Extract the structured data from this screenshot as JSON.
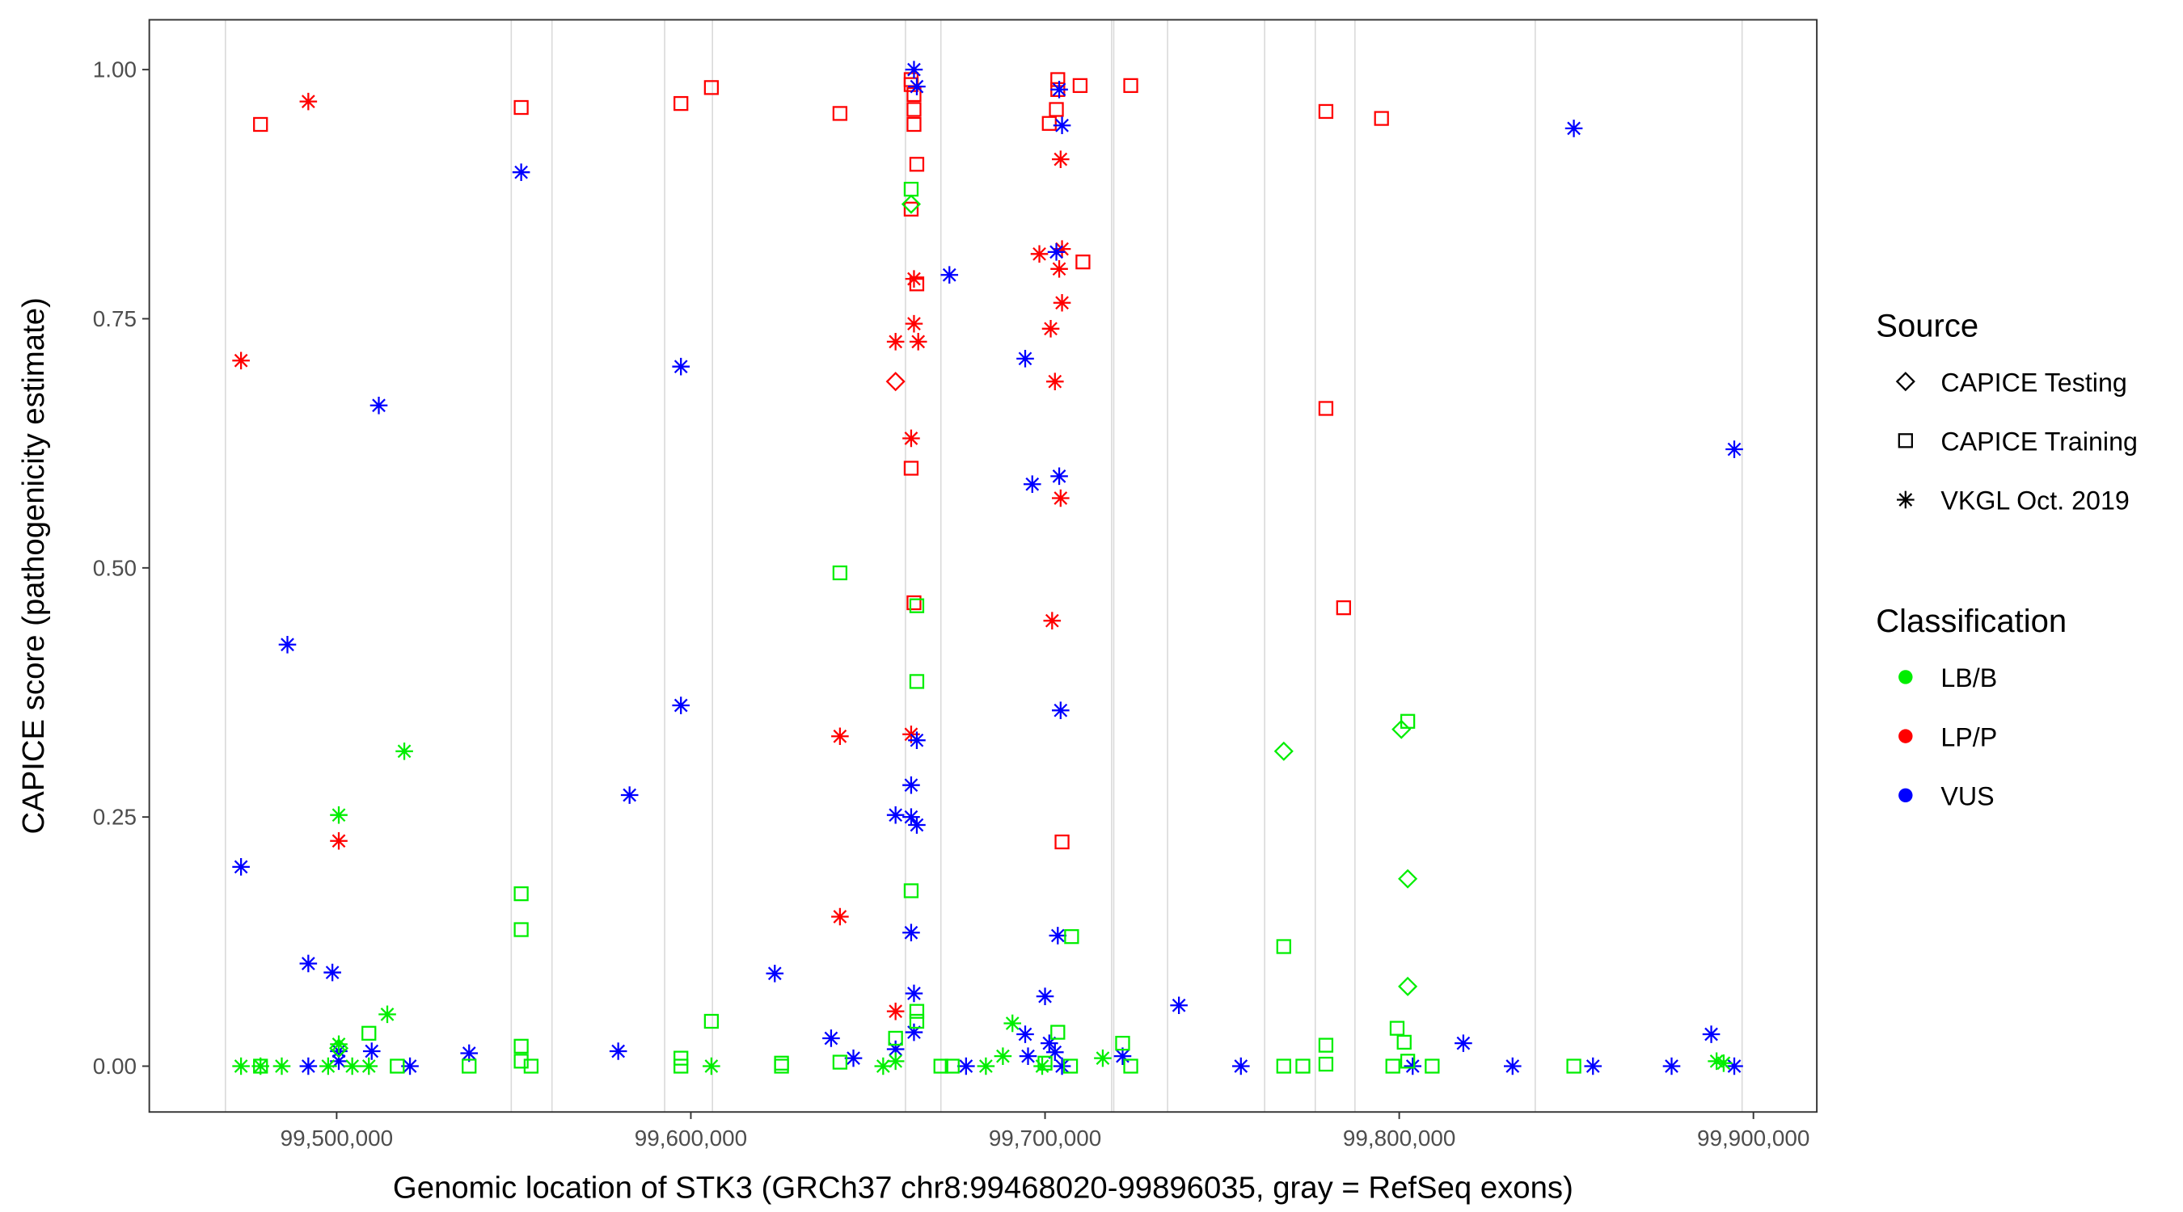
{
  "chart_data": {
    "type": "scatter",
    "xlabel": "Genomic location of STK3 (GRCh37 chr8:99468020-99896035, gray = RefSeq exons)",
    "ylabel": "CAPICE score (pathogenicity estimate)",
    "xlim": [
      99447100,
      99917900
    ],
    "ylim": [
      -0.046,
      1.05
    ],
    "x_ticks": [
      99500000,
      99600000,
      99700000,
      99800000,
      99900000
    ],
    "x_tick_labels": [
      "99,500,000",
      "99,600,000",
      "99,700,000",
      "99,800,000",
      "99,900,000"
    ],
    "y_ticks": [
      0,
      0.25,
      0.5,
      0.75,
      1.0
    ],
    "y_tick_labels": [
      "0.00",
      "0.25",
      "0.50",
      "0.75",
      "1.00"
    ],
    "grid": false,
    "exon_positions": [
      99468600,
      99549300,
      99560800,
      99592600,
      99606100,
      99660600,
      99670600,
      99718800,
      99719400,
      99734600,
      99762000,
      99776300,
      99787500,
      99838400,
      99896800
    ],
    "exon_color": "#d9d9d9",
    "legend": {
      "placement": "right",
      "source_title": "Source",
      "sources": [
        {
          "label": "CAPICE Testing",
          "shape": "diamond-open"
        },
        {
          "label": "CAPICE Training",
          "shape": "square-open"
        },
        {
          "label": "VKGL Oct. 2019",
          "shape": "asterisk"
        }
      ],
      "classification_title": "Classification",
      "classes": [
        {
          "label": "LB/B",
          "color": "#00ee00"
        },
        {
          "label": "LP/P",
          "color": "#ff0000"
        },
        {
          "label": "VUS",
          "color": "#0000ff"
        }
      ]
    },
    "series": [
      {
        "source": "CAPICE Training",
        "classification": "LP/P",
        "points": [
          [
            99478500,
            0.945
          ],
          [
            99552100,
            0.962
          ],
          [
            99597200,
            0.966
          ],
          [
            99605800,
            0.982
          ],
          [
            99642100,
            0.956
          ],
          [
            99662200,
            0.99
          ],
          [
            99662200,
            0.985
          ],
          [
            99663000,
            0.975
          ],
          [
            99663000,
            0.96
          ],
          [
            99663000,
            0.945
          ],
          [
            99663800,
            0.905
          ],
          [
            99662200,
            0.86
          ],
          [
            99663800,
            0.785
          ],
          [
            99662200,
            0.6
          ],
          [
            99663000,
            0.465
          ],
          [
            99703600,
            0.99
          ],
          [
            99703600,
            0.98
          ],
          [
            99709900,
            0.984
          ],
          [
            99703200,
            0.96
          ],
          [
            99701200,
            0.946
          ],
          [
            99710700,
            0.807
          ],
          [
            99704800,
            0.225
          ],
          [
            99724200,
            0.984
          ],
          [
            99779300,
            0.958
          ],
          [
            99795000,
            0.951
          ],
          [
            99779300,
            0.66
          ],
          [
            99784300,
            0.46
          ]
        ]
      },
      {
        "source": "VKGL Oct. 2019",
        "classification": "LP/P",
        "points": [
          [
            99492000,
            0.968
          ],
          [
            99473000,
            0.708
          ],
          [
            99500600,
            0.226
          ],
          [
            99642100,
            0.331
          ],
          [
            99642100,
            0.15
          ],
          [
            99663000,
            0.79
          ],
          [
            99663000,
            0.745
          ],
          [
            99657800,
            0.727
          ],
          [
            99664200,
            0.727
          ],
          [
            99662200,
            0.63
          ],
          [
            99662200,
            0.333
          ],
          [
            99657800,
            0.055
          ],
          [
            99704400,
            0.91
          ],
          [
            99698400,
            0.815
          ],
          [
            99704800,
            0.82
          ],
          [
            99704000,
            0.8
          ],
          [
            99704800,
            0.766
          ],
          [
            99701600,
            0.74
          ],
          [
            99702800,
            0.687
          ],
          [
            99704400,
            0.57
          ],
          [
            99702000,
            0.447
          ]
        ]
      },
      {
        "source": "CAPICE Testing",
        "classification": "LP/P",
        "points": [
          [
            99657800,
            0.687
          ]
        ]
      },
      {
        "source": "VKGL Oct. 2019",
        "classification": "VUS",
        "points": [
          [
            99473000,
            0.2
          ],
          [
            99486100,
            0.423
          ],
          [
            99492000,
            0.103
          ],
          [
            99498800,
            0.094
          ],
          [
            99511900,
            0.663
          ],
          [
            99552100,
            0.897
          ],
          [
            99597200,
            0.702
          ],
          [
            99597200,
            0.362
          ],
          [
            99582700,
            0.272
          ],
          [
            99623700,
            0.093
          ],
          [
            99579500,
            0.015
          ],
          [
            99537400,
            0.013
          ],
          [
            99639600,
            0.028
          ],
          [
            99673000,
            0.794
          ],
          [
            99663000,
            1.0
          ],
          [
            99663800,
            0.983
          ],
          [
            99663800,
            0.327
          ],
          [
            99662200,
            0.282
          ],
          [
            99657800,
            0.252
          ],
          [
            99662200,
            0.25
          ],
          [
            99663800,
            0.242
          ],
          [
            99662200,
            0.134
          ],
          [
            99663000,
            0.073
          ],
          [
            99657800,
            0.017
          ],
          [
            99663000,
            0.034
          ],
          [
            99694400,
            0.71
          ],
          [
            99696400,
            0.584
          ],
          [
            99704000,
            0.592
          ],
          [
            99703200,
            0.817
          ],
          [
            99704000,
            0.98
          ],
          [
            99704800,
            0.944
          ],
          [
            99704400,
            0.357
          ],
          [
            99703600,
            0.131
          ],
          [
            99700000,
            0.07
          ],
          [
            99701200,
            0.023
          ],
          [
            99702800,
            0.014
          ],
          [
            99694400,
            0.032
          ],
          [
            99695200,
            0.01
          ],
          [
            99721900,
            0.01
          ],
          [
            99737800,
            0.061
          ],
          [
            99755300,
            0
          ],
          [
            99818100,
            0.023
          ],
          [
            99832000,
            0
          ],
          [
            99849300,
            0.941
          ],
          [
            99854700,
            0
          ],
          [
            99876900,
            0
          ],
          [
            99888100,
            0.032
          ],
          [
            99894600,
            0
          ],
          [
            99894600,
            0.619
          ],
          [
            99803800,
            0
          ],
          [
            99492000,
            0
          ],
          [
            99500600,
            0.015
          ],
          [
            99509900,
            0.015
          ],
          [
            99520700,
            0
          ],
          [
            99500600,
            0.005
          ],
          [
            99677700,
            0
          ],
          [
            99645900,
            0.008
          ],
          [
            99704800,
            0
          ]
        ]
      },
      {
        "source": "VKGL Oct. 2019",
        "classification": "LB/B",
        "points": [
          [
            99519100,
            0.316
          ],
          [
            99500600,
            0.252
          ],
          [
            99514300,
            0.052
          ],
          [
            99500600,
            0.022
          ],
          [
            99690800,
            0.043
          ],
          [
            99473000,
            0
          ],
          [
            99478500,
            0
          ],
          [
            99484500,
            0
          ],
          [
            99497600,
            0
          ],
          [
            99504400,
            0
          ],
          [
            99509100,
            0
          ],
          [
            99605800,
            0
          ],
          [
            99654300,
            0
          ],
          [
            99657800,
            0.005
          ],
          [
            99683300,
            0
          ],
          [
            99688100,
            0.01
          ],
          [
            99699200,
            0
          ],
          [
            99716300,
            0.008
          ],
          [
            99891600,
            0.003
          ],
          [
            99889600,
            0.005
          ]
        ]
      },
      {
        "source": "CAPICE Training",
        "classification": "LB/B",
        "points": [
          [
            99552100,
            0.173
          ],
          [
            99552100,
            0.137
          ],
          [
            99605800,
            0.045
          ],
          [
            99509100,
            0.033
          ],
          [
            99552100,
            0.02
          ],
          [
            99642100,
            0.495
          ],
          [
            99663800,
            0.462
          ],
          [
            99663800,
            0.386
          ],
          [
            99662200,
            0.176
          ],
          [
            99663800,
            0.055
          ],
          [
            99662200,
            0.88
          ],
          [
            99707500,
            0.13
          ],
          [
            99703600,
            0.034
          ],
          [
            99721900,
            0.023
          ],
          [
            99767400,
            0.12
          ],
          [
            99779300,
            0.021
          ],
          [
            99799400,
            0.038
          ],
          [
            99801400,
            0.024
          ],
          [
            99802400,
            0.346
          ],
          [
            99478500,
            0
          ],
          [
            99517100,
            0
          ],
          [
            99537400,
            0
          ],
          [
            99552100,
            0.005
          ],
          [
            99554900,
            0
          ],
          [
            99597200,
            0.008
          ],
          [
            99597200,
            0
          ],
          [
            99625600,
            0.003
          ],
          [
            99625600,
            0
          ],
          [
            99670600,
            0
          ],
          [
            99673800,
            0
          ],
          [
            99707200,
            0
          ],
          [
            99724200,
            0
          ],
          [
            99767400,
            0
          ],
          [
            99772800,
            0
          ],
          [
            99779300,
            0.002
          ],
          [
            99798200,
            0
          ],
          [
            99802400,
            0.005
          ],
          [
            99809300,
            0
          ],
          [
            99849300,
            0
          ],
          [
            99657800,
            0.028
          ],
          [
            99663800,
            0.045
          ],
          [
            99642100,
            0.004
          ],
          [
            99700000,
            0.003
          ]
        ]
      },
      {
        "source": "CAPICE Testing",
        "classification": "LB/B",
        "points": [
          [
            99662200,
            0.865
          ],
          [
            99767400,
            0.316
          ],
          [
            99800600,
            0.338
          ],
          [
            99802400,
            0.188
          ],
          [
            99802400,
            0.08
          ],
          [
            99500600,
            0.018
          ]
        ]
      }
    ]
  }
}
